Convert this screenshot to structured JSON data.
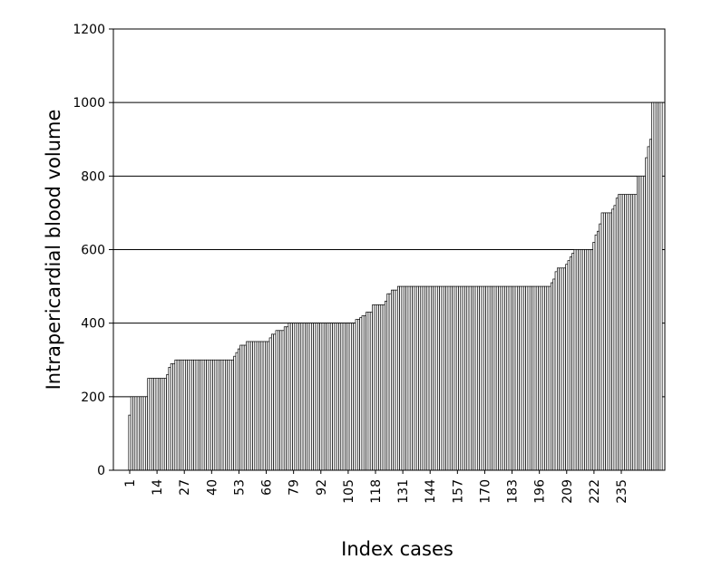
{
  "chart_data": {
    "type": "bar",
    "title": "",
    "xlabel": "Index cases",
    "ylabel": "Intrapericardial blood volume",
    "ylim": [
      0,
      1200
    ],
    "yticks": [
      0,
      200,
      400,
      600,
      800,
      1000,
      1200
    ],
    "xtick_labels": [
      "1",
      "14",
      "27",
      "40",
      "53",
      "66",
      "79",
      "92",
      "105",
      "118",
      "131",
      "144",
      "157",
      "170",
      "183",
      "196",
      "209",
      "222",
      "235"
    ],
    "grid": "horizontal",
    "bar_color": "#ffffff",
    "edge_color": "#000000",
    "x_start": 1,
    "values": [
      150,
      200,
      200,
      200,
      200,
      200,
      200,
      200,
      200,
      250,
      250,
      250,
      250,
      250,
      250,
      250,
      250,
      250,
      260,
      280,
      290,
      290,
      300,
      300,
      300,
      300,
      300,
      300,
      300,
      300,
      300,
      300,
      300,
      300,
      300,
      300,
      300,
      300,
      300,
      300,
      300,
      300,
      300,
      300,
      300,
      300,
      300,
      300,
      300,
      300,
      310,
      320,
      330,
      340,
      340,
      340,
      350,
      350,
      350,
      350,
      350,
      350,
      350,
      350,
      350,
      350,
      350,
      360,
      370,
      370,
      380,
      380,
      380,
      380,
      390,
      390,
      400,
      400,
      400,
      400,
      400,
      400,
      400,
      400,
      400,
      400,
      400,
      400,
      400,
      400,
      400,
      400,
      400,
      400,
      400,
      400,
      400,
      400,
      400,
      400,
      400,
      400,
      400,
      400,
      400,
      400,
      400,
      400,
      410,
      410,
      415,
      420,
      420,
      430,
      430,
      430,
      450,
      450,
      450,
      450,
      450,
      450,
      460,
      480,
      480,
      490,
      490,
      490,
      500,
      500,
      500,
      500,
      500,
      500,
      500,
      500,
      500,
      500,
      500,
      500,
      500,
      500,
      500,
      500,
      500,
      500,
      500,
      500,
      500,
      500,
      500,
      500,
      500,
      500,
      500,
      500,
      500,
      500,
      500,
      500,
      500,
      500,
      500,
      500,
      500,
      500,
      500,
      500,
      500,
      500,
      500,
      500,
      500,
      500,
      500,
      500,
      500,
      500,
      500,
      500,
      500,
      500,
      500,
      500,
      500,
      500,
      500,
      500,
      500,
      500,
      500,
      500,
      500,
      500,
      500,
      500,
      500,
      500,
      500,
      500,
      500,
      510,
      520,
      540,
      550,
      550,
      550,
      550,
      560,
      570,
      580,
      590,
      600,
      600,
      600,
      600,
      600,
      600,
      600,
      600,
      600,
      620,
      640,
      650,
      670,
      700,
      700,
      700,
      700,
      700,
      710,
      720,
      740,
      750,
      750,
      750,
      750,
      750,
      750,
      750,
      750,
      750,
      800,
      800,
      800,
      800,
      850,
      880,
      900,
      1000,
      1000,
      1000,
      1000,
      1000
    ]
  }
}
